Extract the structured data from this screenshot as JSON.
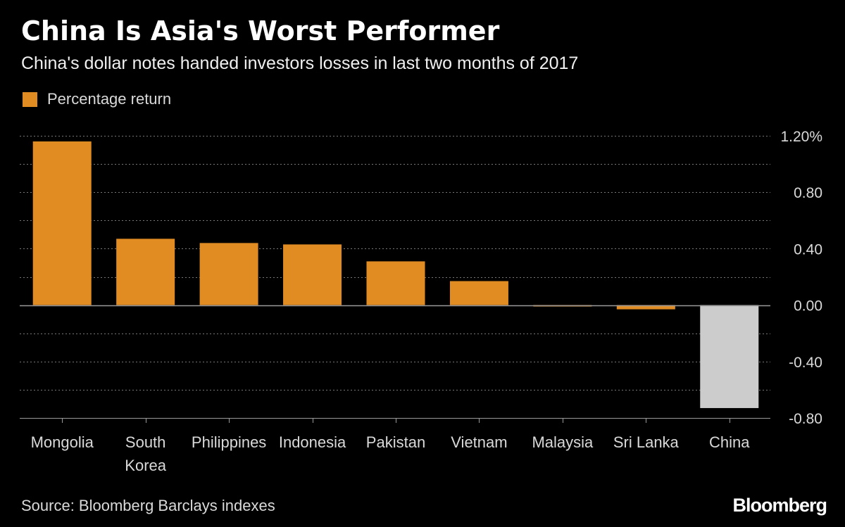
{
  "title": "China Is Asia's Worst Performer",
  "subtitle": "China's dollar notes handed investors losses in last two months of 2017",
  "source": "Source: Bloomberg Barclays indexes",
  "brand": "Bloomberg",
  "colors": {
    "bar": "#e08c23",
    "highlight_bar": "#cccccc",
    "background": "#000000",
    "grid": "#777777",
    "zero_line": "#9a9a9a",
    "tick_text": "#d9d9d9"
  },
  "chart_data": {
    "type": "bar",
    "title": "China Is Asia's Worst Performer",
    "subtitle": "China's dollar notes handed investors losses in last two months of 2017",
    "categories": [
      [
        "Mongolia"
      ],
      [
        "South",
        "Korea"
      ],
      [
        "Philippines"
      ],
      [
        "Indonesia"
      ],
      [
        "Pakistan"
      ],
      [
        "Vietnam"
      ],
      [
        "Malaysia"
      ],
      [
        "Sri Lanka"
      ],
      [
        "China"
      ]
    ],
    "series": [
      {
        "name": "Percentage return",
        "values": [
          1.16,
          0.47,
          0.44,
          0.43,
          0.31,
          0.17,
          -0.01,
          -0.03,
          -0.73
        ]
      }
    ],
    "highlight_category_index": 8,
    "ylim": [
      -0.8,
      1.2
    ],
    "y_ticks": [
      1.2,
      0.8,
      0.4,
      0.0,
      -0.4,
      -0.8
    ],
    "y_tick_labels": [
      "1.20%",
      "0.80",
      "0.40",
      "0.00",
      "-0.40",
      "-0.80"
    ],
    "y_axis_side": "right",
    "grid": true,
    "legend_position": "top-left"
  }
}
